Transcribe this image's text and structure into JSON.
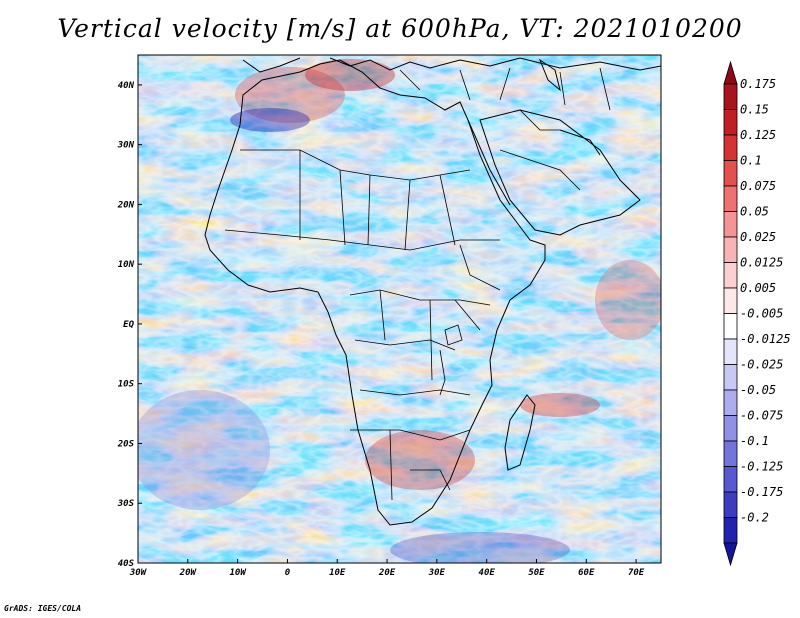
{
  "title": "Vertical velocity [m/s] at 600hPa, VT: 2021010200",
  "footer": "GrADS: IGES/COLA",
  "map": {
    "lon_range": [
      -30,
      75
    ],
    "lat_range": [
      -40,
      45
    ],
    "lon_ticks": [
      {
        "value": -30,
        "label": "30W"
      },
      {
        "value": -20,
        "label": "20W"
      },
      {
        "value": -10,
        "label": "10W"
      },
      {
        "value": 0,
        "label": "0"
      },
      {
        "value": 10,
        "label": "10E"
      },
      {
        "value": 20,
        "label": "20E"
      },
      {
        "value": 30,
        "label": "30E"
      },
      {
        "value": 40,
        "label": "40E"
      },
      {
        "value": 50,
        "label": "50E"
      },
      {
        "value": 60,
        "label": "60E"
      },
      {
        "value": 70,
        "label": "70E"
      }
    ],
    "lat_ticks": [
      {
        "value": 40,
        "label": "40N"
      },
      {
        "value": 30,
        "label": "30N"
      },
      {
        "value": 20,
        "label": "20N"
      },
      {
        "value": 10,
        "label": "10N"
      },
      {
        "value": 0,
        "label": "EQ"
      },
      {
        "value": -10,
        "label": "10S"
      },
      {
        "value": -20,
        "label": "20S"
      },
      {
        "value": -30,
        "label": "30S"
      },
      {
        "value": -40,
        "label": "40S"
      }
    ]
  },
  "colorbar": {
    "levels": [
      {
        "label": "0.175",
        "color": "#a8141e"
      },
      {
        "label": "0.15",
        "color": "#c21e26"
      },
      {
        "label": "0.125",
        "color": "#d63232"
      },
      {
        "label": "0.1",
        "color": "#e45050"
      },
      {
        "label": "0.075",
        "color": "#ee7272"
      },
      {
        "label": "0.05",
        "color": "#f49494"
      },
      {
        "label": "0.025",
        "color": "#f8b4b4"
      },
      {
        "label": "0.0125",
        "color": "#fbd0d0"
      },
      {
        "label": "0.005",
        "color": "#fde8e8"
      },
      {
        "label": "-0.005",
        "color": "#ffffff"
      },
      {
        "label": "-0.0125",
        "color": "#e4e4fa"
      },
      {
        "label": "-0.025",
        "color": "#c8c8f4"
      },
      {
        "label": "-0.05",
        "color": "#acacee"
      },
      {
        "label": "-0.075",
        "color": "#9090e6"
      },
      {
        "label": "-0.1",
        "color": "#7474dc"
      },
      {
        "label": "-0.125",
        "color": "#5858d0"
      },
      {
        "label": "-0.175",
        "color": "#3c3cc2"
      },
      {
        "label": "-0.2",
        "color": "#2222b0"
      }
    ],
    "top_color": "#8c0a14",
    "bottom_color": "#14149c"
  },
  "colors": {
    "land_base": "#ebe8f8",
    "ocean_base": "#e6e3f8",
    "border": "#000000"
  }
}
